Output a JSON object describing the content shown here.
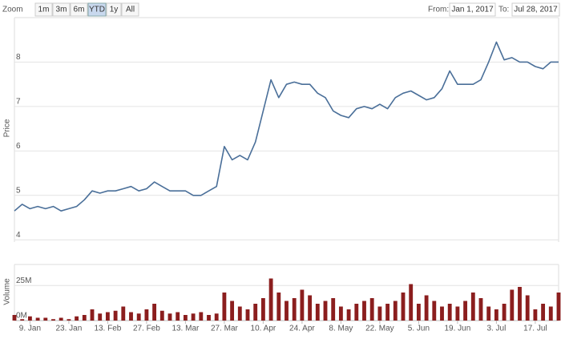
{
  "controls": {
    "zoom_label": "Zoom",
    "buttons": [
      "1m",
      "3m",
      "6m",
      "YTD",
      "1y",
      "All"
    ],
    "selected_index": 3,
    "from_label": "From:",
    "from": "Jan 1, 2017",
    "to_label": "To:",
    "to": "Jul 28, 2017"
  },
  "chart_data": {
    "type": "stock",
    "grid": true,
    "categories": [
      null,
      null,
      "9. Jan",
      null,
      null,
      null,
      null,
      "23. Jan",
      null,
      null,
      null,
      null,
      "13. Feb",
      null,
      null,
      null,
      null,
      "27. Feb",
      null,
      null,
      null,
      null,
      "13. Mar",
      null,
      null,
      null,
      null,
      "27. Mar",
      null,
      null,
      null,
      null,
      "10. Apr",
      null,
      null,
      null,
      null,
      "24. Apr",
      null,
      null,
      null,
      null,
      "8. May",
      null,
      null,
      null,
      null,
      "22. May",
      null,
      null,
      null,
      null,
      "5. Jun",
      null,
      null,
      null,
      null,
      "19. Jun",
      null,
      null,
      null,
      null,
      "3. Jul",
      null,
      null,
      null,
      null,
      "17. Jul",
      null,
      null,
      null
    ],
    "ylim": [
      3.95,
      9
    ],
    "yticks": [
      4,
      5,
      6,
      7,
      8
    ],
    "y2lim": [
      0,
      40
    ],
    "y2ticks": [
      {
        "value": 0,
        "label": "0M"
      },
      {
        "value": 25,
        "label": "25M"
      }
    ],
    "series": [
      {
        "name": "Price",
        "type": "line",
        "color": "#4a6f99",
        "values": [
          4.65,
          4.8,
          4.7,
          4.75,
          4.7,
          4.75,
          4.65,
          4.7,
          4.75,
          4.9,
          5.1,
          5.05,
          5.1,
          5.1,
          5.15,
          5.2,
          5.1,
          5.15,
          5.3,
          5.2,
          5.1,
          5.1,
          5.1,
          5.0,
          5.0,
          5.1,
          5.2,
          6.1,
          5.8,
          5.9,
          5.8,
          6.2,
          6.9,
          7.6,
          7.2,
          7.5,
          7.55,
          7.5,
          7.5,
          7.3,
          7.2,
          6.9,
          6.8,
          6.75,
          6.95,
          7.0,
          6.95,
          7.05,
          6.95,
          7.2,
          7.3,
          7.35,
          7.25,
          7.15,
          7.2,
          7.4,
          7.8,
          7.5,
          7.5,
          7.5,
          7.6,
          8.0,
          8.45,
          8.05,
          8.1,
          8.0,
          8.0,
          7.9,
          7.85,
          8.0,
          8.0
        ]
      },
      {
        "name": "Volume",
        "type": "bar",
        "axis": "y2",
        "color": "#8b1e1e",
        "values": [
          4,
          1,
          3,
          2,
          2,
          1,
          2,
          1,
          3,
          4,
          8,
          5,
          6,
          7,
          10,
          6,
          5,
          8,
          12,
          7,
          5,
          6,
          4,
          5,
          6,
          4,
          5,
          20,
          14,
          10,
          8,
          12,
          16,
          30,
          20,
          14,
          16,
          22,
          18,
          12,
          14,
          16,
          10,
          8,
          12,
          14,
          16,
          10,
          12,
          14,
          20,
          26,
          12,
          18,
          14,
          10,
          12,
          10,
          14,
          20,
          16,
          10,
          8,
          12,
          22,
          24,
          18,
          8,
          12,
          10,
          20
        ]
      }
    ]
  }
}
